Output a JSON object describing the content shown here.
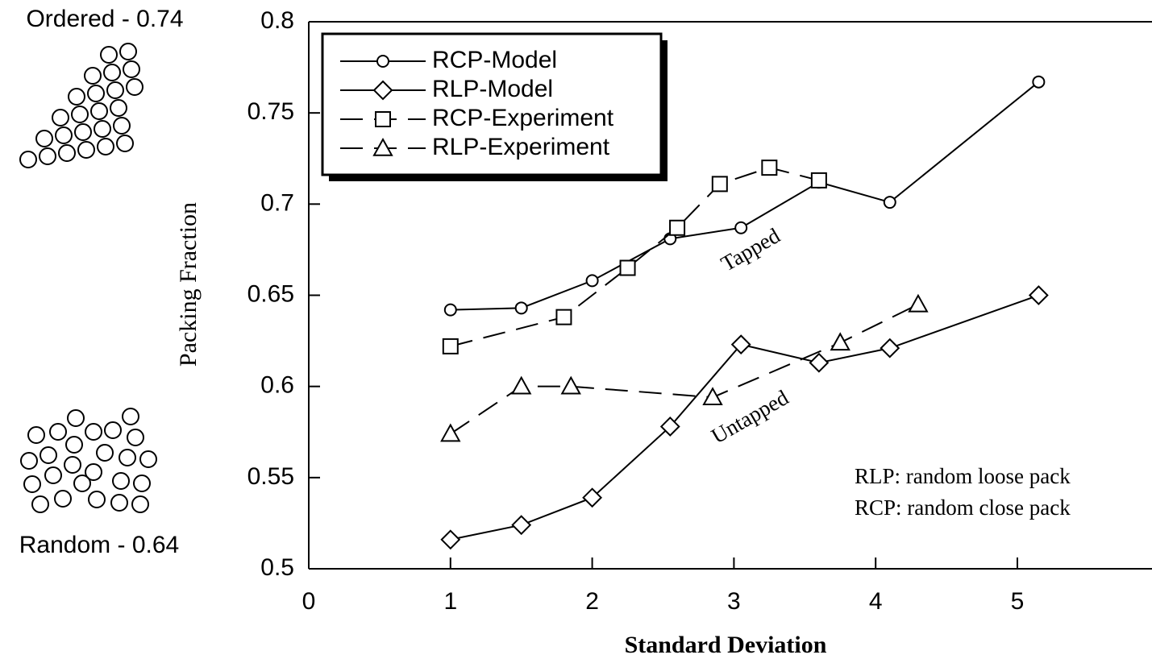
{
  "chart_data": {
    "type": "line",
    "x_label": "Standard Deviation",
    "y_label": "Packing Fraction",
    "xlim": [
      0,
      5.95
    ],
    "ylim": [
      0.5,
      0.8
    ],
    "xticks": [
      0,
      1,
      2,
      3,
      4,
      5
    ],
    "yticks": [
      0.5,
      0.55,
      0.6,
      0.65,
      0.7,
      0.75,
      0.8
    ],
    "legend": "upper left",
    "series": [
      {
        "name": "RCP-Model",
        "color": "#000000",
        "marker": "circle",
        "style": "solid",
        "x": [
          1,
          1.5,
          2,
          2.55,
          3.05,
          3.6,
          4.1,
          5.15
        ],
        "values": [
          0.642,
          0.643,
          0.658,
          0.681,
          0.687,
          0.712,
          0.701,
          0.767
        ]
      },
      {
        "name": "RLP-Model",
        "color": "#000000",
        "marker": "diamond",
        "style": "solid",
        "x": [
          1,
          1.5,
          2,
          2.55,
          3.05,
          3.6,
          4.1,
          5.15
        ],
        "values": [
          0.516,
          0.524,
          0.539,
          0.578,
          0.623,
          0.613,
          0.621,
          0.65
        ]
      },
      {
        "name": "RCP-Experiment",
        "color": "#000000",
        "marker": "square",
        "style": "dashed",
        "x": [
          1,
          1.8,
          2.25,
          2.6,
          2.9,
          3.25,
          3.6
        ],
        "values": [
          0.622,
          0.638,
          0.665,
          0.687,
          0.711,
          0.72,
          0.713
        ]
      },
      {
        "name": "RLP-Experiment",
        "color": "#000000",
        "marker": "triangle",
        "style": "dashed",
        "x": [
          1,
          1.5,
          1.85,
          2.85,
          3.75,
          4.3
        ],
        "values": [
          0.574,
          0.6,
          0.6,
          0.594,
          0.624,
          0.645
        ]
      }
    ],
    "annotations": [
      "Tapped",
      "Untapped",
      "RLP: random loose pack",
      "RCP: random close pack"
    ],
    "side_labels": [
      "Ordered - 0.74",
      "Random - 0.64"
    ]
  }
}
